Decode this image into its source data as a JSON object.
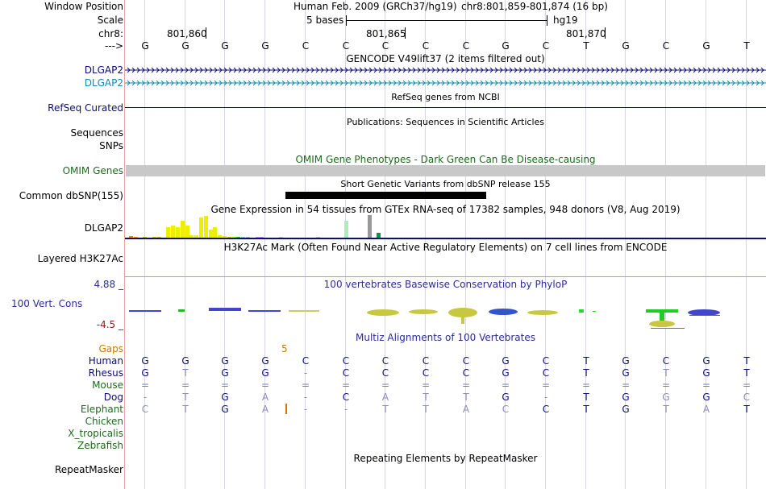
{
  "header": {
    "window_position_label": "Window Position",
    "assembly_text": "Human Feb. 2009 (GRCh37/hg19)",
    "position_text": "chr8:801,859-801,874 (16 bp)",
    "scale_label": "Scale",
    "scale_text": "5 bases",
    "db_text": "hg19",
    "chrom_label": "chr8:",
    "ticks": [
      "801,860",
      "801,865",
      "801,870"
    ],
    "strand_label": "--->"
  },
  "bases": [
    "G",
    "G",
    "G",
    "G",
    "C",
    "C",
    "C",
    "C",
    "C",
    "G",
    "C",
    "T",
    "G",
    "C",
    "G",
    "T"
  ],
  "tracks": {
    "gencode": {
      "title": "GENCODE V49lift37 (2 items filtered out)",
      "items": [
        {
          "label": "DLGAP2",
          "color": "#0c0c78"
        },
        {
          "label": "DLGAP2",
          "color": "#1588b0"
        }
      ]
    },
    "refseq": {
      "title": "RefSeq genes from NCBI",
      "label": "RefSeq Curated",
      "color": "#0c0c78"
    },
    "publications": {
      "title": "Publications: Sequences in Scientific Articles",
      "label_sequences": "Sequences",
      "label_snps": "SNPs"
    },
    "omim": {
      "title": "OMIM Gene Phenotypes - Dark Green Can Be Disease-causing",
      "label": "OMIM Genes",
      "color": "#1b6b1b",
      "bar_color": "#c8c8c8"
    },
    "dbsnp": {
      "title": "Short Genetic Variants from dbSNP release 155",
      "label": "Common dbSNP(155)"
    },
    "gtex": {
      "title": "Gene Expression in 54 tissues from GTEx RNA-seq of 17382 samples, 948 donors (V8, Aug 2019)",
      "label": "DLGAP2",
      "bars": [
        {
          "v": 0.08,
          "c": "#ff8800"
        },
        {
          "v": 0.04,
          "c": "#ffaa00"
        },
        {
          "v": 0.0,
          "c": "#ffd27f"
        },
        {
          "v": 0.03,
          "c": "#cccc00"
        },
        {
          "v": 0.0,
          "c": "#cccc00"
        },
        {
          "v": 0.02,
          "c": "#cccc00"
        },
        {
          "v": 0.03,
          "c": "#cccc00"
        },
        {
          "v": 0.0,
          "c": "#cccc00"
        },
        {
          "v": 0.45,
          "c": "#eeee00"
        },
        {
          "v": 0.55,
          "c": "#eeee00"
        },
        {
          "v": 0.45,
          "c": "#eeee00"
        },
        {
          "v": 0.75,
          "c": "#eeee00"
        },
        {
          "v": 0.55,
          "c": "#eeee00"
        },
        {
          "v": 0.12,
          "c": "#eeee00"
        },
        {
          "v": 0.1,
          "c": "#eeee00"
        },
        {
          "v": 0.88,
          "c": "#eeee00"
        },
        {
          "v": 0.95,
          "c": "#eeee00"
        },
        {
          "v": 0.35,
          "c": "#eeee00"
        },
        {
          "v": 0.45,
          "c": "#eeee00"
        },
        {
          "v": 0.12,
          "c": "#eeee00"
        },
        {
          "v": 0.08,
          "c": "#eeee00"
        },
        {
          "v": 0.05,
          "c": "#cccc00"
        },
        {
          "v": 0.05,
          "c": "#99ff00"
        },
        {
          "v": 0.02,
          "c": "#33cc33"
        },
        {
          "v": 0.03,
          "c": "#99cccc"
        },
        {
          "v": 0.02,
          "c": "#99cccc"
        },
        {
          "v": 0.0,
          "c": "#cccccc"
        },
        {
          "v": 0.02,
          "c": "#cc99ff"
        },
        {
          "v": 0.02,
          "c": "#cc99ff"
        },
        {
          "v": 0.0,
          "c": "#cccccc"
        },
        {
          "v": 0.0,
          "c": "#cccccc"
        },
        {
          "v": 0.0,
          "c": "#cccccc"
        },
        {
          "v": 0.02,
          "c": "#cccccc"
        },
        {
          "v": 0.0,
          "c": "#cccccc"
        },
        {
          "v": 0.0,
          "c": "#cccccc"
        },
        {
          "v": 0.0,
          "c": "#cccccc"
        },
        {
          "v": 0.0,
          "c": "#cccccc"
        },
        {
          "v": 0.0,
          "c": "#cccccc"
        },
        {
          "v": 0.0,
          "c": "#cccccc"
        },
        {
          "v": 0.0,
          "c": "#cccccc"
        },
        {
          "v": 0.02,
          "c": "#cccccc"
        },
        {
          "v": 0.0,
          "c": "#cccccc"
        },
        {
          "v": 0.0,
          "c": "#cccccc"
        },
        {
          "v": 0.0,
          "c": "#cccccc"
        },
        {
          "v": 0.0,
          "c": "#cccccc"
        },
        {
          "v": 0.0,
          "c": "#cccccc"
        },
        {
          "v": 0.75,
          "c": "#aaeebb"
        },
        {
          "v": 0.0,
          "c": "#cccccc"
        },
        {
          "v": 0.0,
          "c": "#cccccc"
        },
        {
          "v": 0.0,
          "c": "#cccccc"
        },
        {
          "v": 0.0,
          "c": "#cccccc"
        },
        {
          "v": 1.0,
          "c": "#999999"
        },
        {
          "v": 0.0,
          "c": "#cccccc"
        },
        {
          "v": 0.22,
          "c": "#009944"
        }
      ]
    },
    "h3k27ac": {
      "title": "H3K27Ac Mark (Often Found Near Active Regulatory Elements) on 7 cell lines from ENCODE",
      "label": "Layered H3K27Ac"
    },
    "phylop": {
      "title": "100 vertebrates Basewise Conservation by PhyloP",
      "label": "100 Vert. Cons",
      "max": "4.88 _",
      "min": "-4.5 _",
      "color": "#2b2b9a",
      "min_color": "#8b1a1a"
    },
    "multiz": {
      "title": "Multiz Alignments of 100 Vertebrates",
      "gaps_label": "Gaps",
      "gaps_value": "5",
      "gaps_color": "#cc7700",
      "species": [
        {
          "name": "Human",
          "color": "#0c0c78",
          "seq": [
            "G",
            "G",
            "G",
            "G",
            "C",
            "C",
            "C",
            "C",
            "C",
            "G",
            "C",
            "T",
            "G",
            "C",
            "G",
            "T"
          ]
        },
        {
          "name": "Rhesus",
          "color": "#0c0c78",
          "seq": [
            "G",
            "T",
            "G",
            "G",
            "-",
            "C",
            "C",
            "C",
            "C",
            "G",
            "C",
            "T",
            "G",
            "T",
            "G",
            "T"
          ]
        },
        {
          "name": "Mouse",
          "color": "#1b6b1b",
          "seq": [
            "=",
            "=",
            "=",
            "=",
            "=",
            "=",
            "=",
            "=",
            "=",
            "=",
            "=",
            "=",
            "=",
            "=",
            "=",
            "="
          ]
        },
        {
          "name": "Dog",
          "color": "#0c0c78",
          "seq": [
            "-",
            "T",
            "G",
            "A",
            "-",
            "C",
            "A",
            "T",
            "T",
            "G",
            "-",
            "T",
            "G",
            "G",
            "G",
            "C"
          ]
        },
        {
          "name": "Elephant",
          "color": "#1b6b1b",
          "seq": [
            "C",
            "T",
            "G",
            "A",
            "-",
            "-",
            "T",
            "T",
            "A",
            "C",
            "C",
            "T",
            "G",
            "T",
            "A",
            "T"
          ]
        },
        {
          "name": "Chicken",
          "color": "#1b6b1b",
          "seq": []
        },
        {
          "name": "X_tropicalis",
          "color": "#1b6b1b",
          "seq": []
        },
        {
          "name": "Zebrafish",
          "color": "#1b6b1b",
          "seq": []
        }
      ]
    },
    "repeatmasker": {
      "title": "Repeating Elements by RepeatMasker",
      "label": "RepeatMasker"
    }
  }
}
